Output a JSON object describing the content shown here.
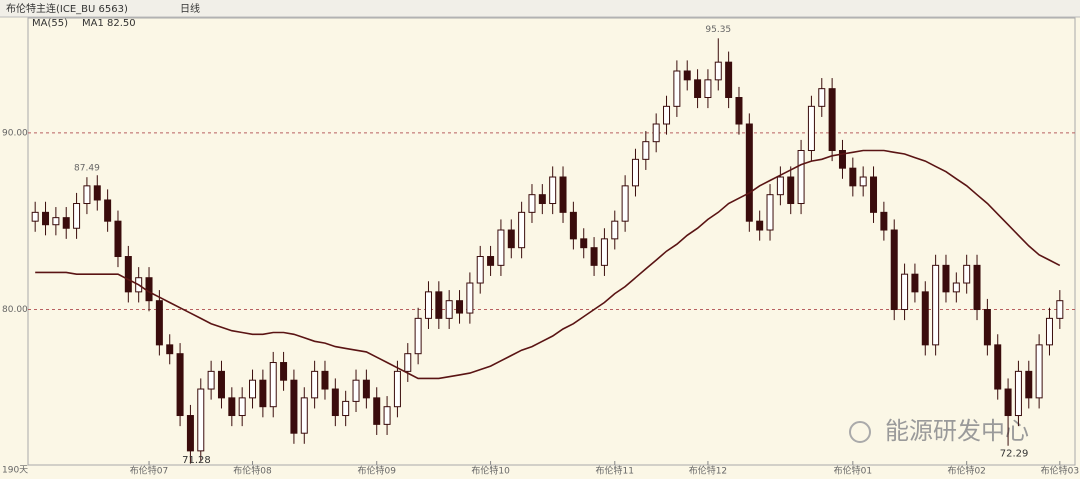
{
  "header": {
    "title": "布伦特主连(ICE_BU 6563)",
    "period": "日线",
    "days": "190天",
    "watermark": "能源研发中心"
  },
  "chart_data": {
    "type": "candlestick",
    "ma_label": "MA1 82.50",
    "categories": [
      null,
      null,
      null,
      null,
      null,
      null,
      null,
      null,
      null,
      null,
      null,
      "布伦特07",
      null,
      null,
      null,
      null,
      null,
      null,
      null,
      null,
      null,
      "布伦特08",
      null,
      null,
      null,
      null,
      null,
      null,
      null,
      null,
      null,
      null,
      null,
      "布伦特09",
      null,
      null,
      null,
      null,
      null,
      null,
      null,
      null,
      null,
      null,
      "布伦特10",
      null,
      null,
      null,
      null,
      null,
      null,
      null,
      null,
      null,
      null,
      null,
      "布伦特11",
      null,
      null,
      null,
      null,
      null,
      null,
      null,
      null,
      "布伦特12",
      null,
      null,
      null,
      null,
      null,
      null,
      null,
      null,
      null,
      null,
      null,
      null,
      null,
      "布伦特01",
      null,
      null,
      null,
      null,
      null,
      null,
      null,
      null,
      null,
      null,
      "布伦特02",
      null,
      null,
      null,
      null,
      null,
      null,
      null,
      null,
      "布伦特03"
    ],
    "open": [
      85.0,
      85.5,
      84.8,
      85.2,
      84.6,
      86.0,
      87.0,
      86.2,
      85.0,
      83.0,
      81.0,
      81.8,
      80.5,
      78.0,
      77.5,
      74.0,
      72.0,
      75.5,
      76.5,
      75.0,
      74.0,
      75.0,
      76.0,
      74.5,
      77.0,
      76.0,
      73.0,
      75.0,
      76.5,
      75.5,
      74.0,
      74.8,
      76.0,
      75.0,
      73.5,
      74.5,
      76.5,
      77.5,
      79.5,
      81.0,
      79.5,
      80.5,
      79.8,
      81.5,
      83.0,
      82.5,
      84.5,
      83.5,
      85.5,
      86.5,
      86.0,
      87.5,
      85.5,
      84.0,
      83.5,
      82.5,
      84.0,
      85.0,
      87.0,
      88.5,
      89.5,
      90.5,
      91.5,
      93.5,
      93.0,
      92.0,
      93.0,
      94.0,
      92.0,
      90.5,
      85.0,
      84.5,
      86.5,
      87.5,
      86.0,
      89.0,
      91.5,
      92.5,
      89.0,
      88.0,
      87.0,
      87.5,
      85.5,
      84.5,
      80.0,
      82.0,
      81.0,
      78.0,
      82.5,
      81.0,
      81.5,
      82.5,
      80.0,
      78.0,
      75.5,
      74.0,
      76.5,
      75.0,
      78.0,
      79.5
    ],
    "high": [
      86.1,
      86.1,
      85.8,
      85.8,
      86.6,
      87.49,
      87.6,
      86.8,
      85.6,
      83.6,
      82.4,
      82.4,
      81.1,
      78.6,
      78.1,
      74.6,
      76.1,
      77.1,
      77.1,
      75.6,
      75.6,
      76.6,
      76.6,
      77.6,
      77.6,
      76.6,
      75.6,
      77.1,
      77.1,
      76.1,
      75.4,
      76.6,
      76.6,
      75.6,
      75.1,
      77.1,
      78.1,
      80.1,
      81.6,
      81.6,
      81.1,
      81.1,
      82.1,
      83.6,
      83.6,
      85.1,
      85.1,
      86.1,
      87.1,
      87.1,
      88.1,
      88.1,
      86.1,
      84.6,
      84.1,
      84.6,
      85.6,
      87.6,
      89.1,
      90.1,
      91.1,
      92.1,
      94.1,
      94.1,
      93.6,
      93.6,
      95.35,
      94.6,
      92.6,
      91.1,
      85.6,
      87.1,
      88.1,
      88.1,
      89.6,
      92.1,
      93.1,
      93.1,
      89.6,
      88.6,
      88.1,
      88.1,
      86.1,
      85.1,
      82.6,
      82.6,
      81.6,
      83.1,
      83.1,
      82.1,
      83.1,
      83.1,
      80.6,
      78.6,
      76.1,
      77.1,
      77.1,
      78.6,
      80.1,
      81.1
    ],
    "low": [
      84.4,
      84.2,
      84.2,
      84.0,
      84.0,
      85.4,
      85.6,
      84.4,
      82.4,
      80.4,
      80.4,
      79.9,
      77.4,
      76.9,
      73.4,
      71.28,
      71.4,
      74.9,
      74.4,
      73.4,
      73.4,
      74.4,
      73.9,
      73.9,
      75.4,
      72.4,
      72.4,
      74.4,
      74.9,
      73.4,
      73.4,
      74.2,
      74.4,
      72.9,
      72.9,
      73.9,
      75.9,
      76.9,
      78.9,
      78.9,
      78.9,
      79.2,
      79.2,
      80.9,
      81.9,
      81.9,
      82.9,
      82.9,
      84.9,
      85.4,
      85.4,
      84.9,
      83.4,
      82.9,
      81.9,
      81.9,
      83.4,
      84.4,
      86.4,
      87.9,
      88.9,
      89.9,
      90.9,
      92.4,
      91.4,
      91.4,
      92.4,
      91.4,
      89.9,
      84.4,
      83.9,
      83.9,
      85.9,
      85.4,
      85.4,
      88.4,
      90.9,
      88.4,
      87.4,
      86.4,
      86.4,
      84.9,
      83.9,
      79.4,
      79.4,
      80.4,
      77.4,
      77.4,
      80.4,
      80.4,
      80.9,
      79.4,
      77.4,
      74.9,
      72.29,
      73.4,
      74.4,
      74.4,
      77.4,
      78.9
    ],
    "close": [
      85.5,
      84.8,
      85.2,
      84.6,
      86.0,
      87.0,
      86.2,
      85.0,
      83.0,
      81.0,
      81.8,
      80.5,
      78.0,
      77.5,
      74.0,
      72.0,
      75.5,
      76.5,
      75.0,
      74.0,
      75.0,
      76.0,
      74.5,
      77.0,
      76.0,
      73.0,
      75.0,
      76.5,
      75.5,
      74.0,
      74.8,
      76.0,
      75.0,
      73.5,
      74.5,
      76.5,
      77.5,
      79.5,
      81.0,
      79.5,
      80.5,
      79.8,
      81.5,
      83.0,
      82.5,
      84.5,
      83.5,
      85.5,
      86.5,
      86.0,
      87.5,
      85.5,
      84.0,
      83.5,
      82.5,
      84.0,
      85.0,
      87.0,
      88.5,
      89.5,
      90.5,
      91.5,
      93.5,
      93.0,
      92.0,
      93.0,
      94.0,
      92.0,
      90.5,
      85.0,
      84.5,
      86.5,
      87.5,
      86.0,
      89.0,
      91.5,
      92.5,
      89.0,
      88.0,
      87.0,
      87.5,
      85.5,
      84.5,
      80.0,
      82.0,
      81.0,
      78.0,
      82.5,
      81.0,
      81.5,
      82.5,
      80.0,
      78.0,
      75.5,
      74.0,
      76.5,
      75.0,
      78.0,
      79.5,
      80.5
    ],
    "up_color": "#ffffff",
    "down_color": "#3a0c0c",
    "wick_color": "#3a0c0c",
    "series": [
      {
        "name": "MA(55)",
        "color": "#5a1414",
        "values": [
          82.1,
          82.1,
          82.1,
          82.1,
          82.0,
          82.0,
          82.0,
          82.0,
          82.0,
          81.7,
          81.4,
          81.0,
          80.7,
          80.4,
          80.1,
          79.8,
          79.5,
          79.2,
          79.0,
          78.8,
          78.7,
          78.6,
          78.6,
          78.7,
          78.7,
          78.6,
          78.4,
          78.2,
          78.1,
          77.9,
          77.8,
          77.7,
          77.6,
          77.3,
          77.0,
          76.7,
          76.4,
          76.1,
          76.1,
          76.1,
          76.2,
          76.3,
          76.4,
          76.6,
          76.8,
          77.1,
          77.4,
          77.7,
          77.9,
          78.2,
          78.5,
          78.9,
          79.2,
          79.6,
          80.0,
          80.4,
          80.9,
          81.3,
          81.8,
          82.3,
          82.8,
          83.3,
          83.7,
          84.2,
          84.6,
          85.1,
          85.5,
          86.0,
          86.3,
          86.6,
          87.0,
          87.3,
          87.6,
          87.9,
          88.2,
          88.4,
          88.5,
          88.7,
          88.8,
          88.9,
          89.0,
          89.0,
          89.0,
          88.9,
          88.8,
          88.6,
          88.4,
          88.1,
          87.8,
          87.4,
          87.0,
          86.5,
          86.0,
          85.4,
          84.8,
          84.2,
          83.6,
          83.1,
          82.8,
          82.5
        ]
      }
    ],
    "peak_labels": [
      5,
      66
    ],
    "trough_labels": [
      15,
      94
    ],
    "ylim": [
      71.2,
      96.5
    ],
    "yticks": [
      {
        "value": 80,
        "label": "80.00"
      },
      {
        "value": 90,
        "label": "90.00"
      }
    ],
    "grid": true,
    "grid_color": "#b86060"
  }
}
